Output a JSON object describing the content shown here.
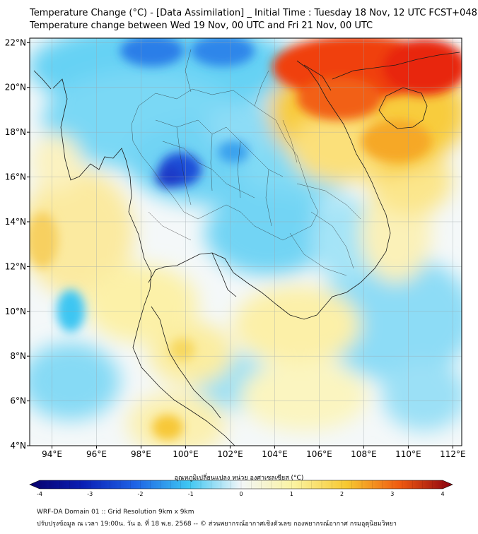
{
  "header": {
    "title_line1": "Temperature Change (°C) - [Data Assimilation] _ Initial Time : Tuesday 18 Nov, 12 UTC FCST+048",
    "title_line2": "Temperature change between Wed 19 Nov, 00 UTC and Fri 21 Nov, 00 UTC"
  },
  "map": {
    "lat_labels": [
      "22°N",
      "20°N",
      "18°N",
      "16°N",
      "14°N",
      "12°N",
      "10°N",
      "8°N",
      "6°N",
      "4°N"
    ],
    "lat_values": [
      22,
      20,
      18,
      16,
      14,
      12,
      10,
      8,
      6,
      4
    ],
    "lon_labels": [
      "94°E",
      "96°E",
      "98°E",
      "100°E",
      "102°E",
      "104°E",
      "106°E",
      "108°E",
      "110°E",
      "112°E"
    ],
    "lon_values": [
      94,
      96,
      98,
      100,
      102,
      104,
      106,
      108,
      110,
      112
    ],
    "lat_range": [
      4,
      22.2
    ],
    "lon_range": [
      93,
      112.4
    ]
  },
  "colorbar": {
    "label": "อุณหภูมิเปลี่ยนแปลง หน่วย องศาเซลเซียส (°C)",
    "ticks": [
      "-4",
      "-3",
      "-2",
      "-1",
      "0",
      "1",
      "2",
      "3",
      "4"
    ],
    "min": -4,
    "max": 4,
    "colors": {
      "neg4": "#08006b",
      "neg3": "#0a1fb5",
      "neg2": "#1e64e6",
      "neg1": "#3ec6f2",
      "zero": "#f2f6f8",
      "pos1": "#fbf3a0",
      "pos2": "#f7c830",
      "pos3": "#f05a10",
      "pos4": "#8a0010"
    }
  },
  "footer": {
    "line1": "WRF-DA Domain 01 :: Grid Resolution 9km x 9km",
    "line2": "ปรับปรุงข้อมูล ณ เวลา 19:00น. วัน อ. ที่ 18 พ.ย. 2568 -- © ส่วนพยากรณ์อากาศเชิงตัวเลข กองพยากรณ์อากาศ กรมอุตุนิยมวิทยา"
  }
}
